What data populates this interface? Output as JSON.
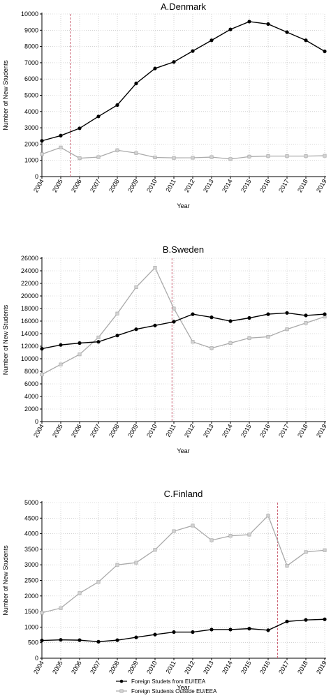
{
  "colors": {
    "eu": "#000000",
    "outside": "#aaaaaa",
    "marker_outside_fill": "#d3d3d3",
    "policy_line": "#cc6677",
    "grid": "#bbbbbb"
  },
  "legend": [
    {
      "label": "Foreign Studets from EU/EEA",
      "series": "eu",
      "marker": "circle"
    },
    {
      "label": "Foreign Students Outside EU/EEA",
      "series": "outside",
      "marker": "square"
    }
  ],
  "chart_data": [
    {
      "type": "line",
      "title": "A.Denmark",
      "xlabel": "Year",
      "ylabel": "Number of New Students",
      "x": [
        2004,
        2005,
        2006,
        2007,
        2008,
        2009,
        2010,
        2011,
        2012,
        2013,
        2014,
        2015,
        2016,
        2017,
        2018,
        2019
      ],
      "ylim": [
        0,
        10000
      ],
      "yticks": [
        0,
        1000,
        2000,
        3000,
        4000,
        5000,
        6000,
        7000,
        8000,
        9000,
        10000
      ],
      "grid": true,
      "policy_line_x": 2005.5,
      "series": [
        {
          "key": "eu",
          "values": [
            2200,
            2520,
            2970,
            3700,
            4400,
            5730,
            6650,
            7050,
            7720,
            8380,
            9050,
            9530,
            9380,
            8880,
            8380,
            7700
          ]
        },
        {
          "key": "outside",
          "values": [
            1380,
            1790,
            1130,
            1200,
            1620,
            1450,
            1180,
            1150,
            1160,
            1200,
            1080,
            1230,
            1260,
            1260,
            1260,
            1280
          ]
        }
      ]
    },
    {
      "type": "line",
      "title": "B.Sweden",
      "xlabel": "Year",
      "ylabel": "Number of New Students",
      "x": [
        2004,
        2005,
        2006,
        2007,
        2008,
        2009,
        2010,
        2011,
        2012,
        2013,
        2014,
        2015,
        2016,
        2017,
        2018,
        2019
      ],
      "ylim": [
        0,
        26000
      ],
      "yticks": [
        0,
        2000,
        4000,
        6000,
        8000,
        10000,
        12000,
        14000,
        16000,
        18000,
        20000,
        22000,
        24000,
        26000
      ],
      "grid": true,
      "policy_line_x": 2010.9,
      "series": [
        {
          "key": "eu",
          "values": [
            11600,
            12200,
            12500,
            12700,
            13700,
            14700,
            15300,
            15900,
            17100,
            16600,
            16000,
            16500,
            17100,
            17300,
            16900,
            17100
          ]
        },
        {
          "key": "outside",
          "values": [
            7500,
            9100,
            10700,
            13400,
            17200,
            21400,
            24500,
            18000,
            12700,
            11700,
            12500,
            13300,
            13500,
            14700,
            15700,
            16700
          ]
        }
      ]
    },
    {
      "type": "line",
      "title": "C.Finland",
      "xlabel": "Year",
      "ylabel": "Number of New Students",
      "x": [
        2004,
        2005,
        2006,
        2007,
        2008,
        2009,
        2010,
        2011,
        2012,
        2013,
        2014,
        2015,
        2016,
        2017,
        2018,
        2019
      ],
      "ylim": [
        0,
        5000
      ],
      "yticks": [
        0,
        500,
        1000,
        1500,
        2000,
        2500,
        3000,
        3500,
        4000,
        4500,
        5000
      ],
      "grid": true,
      "policy_line_x": 2016.5,
      "series": [
        {
          "key": "eu",
          "values": [
            570,
            590,
            580,
            530,
            580,
            670,
            760,
            840,
            840,
            920,
            920,
            950,
            900,
            1180,
            1230,
            1250
          ]
        },
        {
          "key": "outside",
          "values": [
            1460,
            1610,
            2090,
            2450,
            3000,
            3070,
            3480,
            4080,
            4260,
            3790,
            3930,
            3970,
            4580,
            2970,
            3410,
            3470
          ]
        }
      ]
    }
  ]
}
